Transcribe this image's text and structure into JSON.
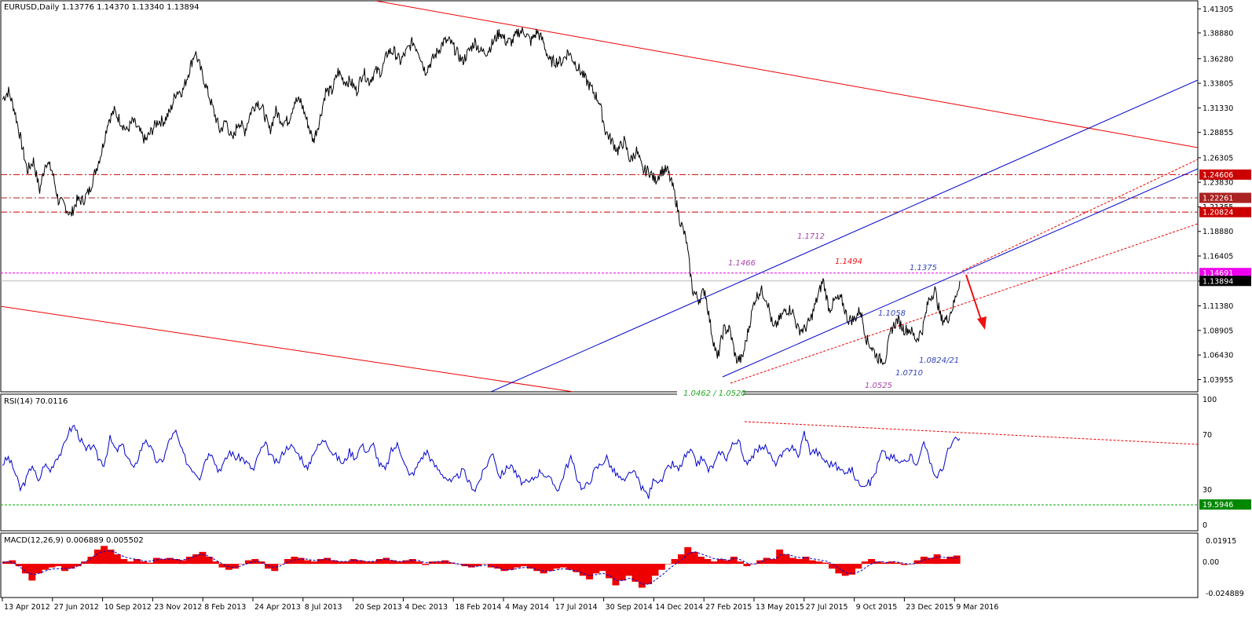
{
  "chart_data": [
    {
      "panel": "price",
      "type": "line",
      "header": "EURUSD,Daily  1.13776 1.14370 1.13340 1.13894",
      "ylim": [
        1.0296,
        1.418
      ],
      "price_levels": [
        "1.41305",
        "1.38880",
        "1.36280",
        "1.33805",
        "1.31330",
        "1.28855",
        "1.26305",
        "1.23830",
        "1.21355",
        "1.18880",
        "1.16405",
        "1.13880",
        "1.11380",
        "1.08905",
        "1.06430",
        "1.03955"
      ],
      "series": [
        {
          "values": [
            1.322,
            1.33,
            1.31,
            1.28,
            1.25,
            1.26,
            1.23,
            1.26,
            1.25,
            1.22,
            1.215,
            1.205,
            1.22,
            1.22,
            1.23,
            1.25,
            1.27,
            1.3,
            1.31,
            1.3,
            1.29,
            1.3,
            1.29,
            1.28,
            1.29,
            1.3,
            1.3,
            1.31,
            1.33,
            1.33,
            1.35,
            1.37,
            1.35,
            1.33,
            1.31,
            1.29,
            1.3,
            1.28,
            1.3,
            1.29,
            1.31,
            1.32,
            1.31,
            1.29,
            1.31,
            1.3,
            1.3,
            1.32,
            1.32,
            1.3,
            1.28,
            1.3,
            1.33,
            1.33,
            1.35,
            1.34,
            1.34,
            1.33,
            1.35,
            1.34,
            1.35,
            1.35,
            1.37,
            1.37,
            1.36,
            1.37,
            1.38,
            1.37,
            1.35,
            1.36,
            1.37,
            1.38,
            1.38,
            1.37,
            1.36,
            1.37,
            1.38,
            1.37,
            1.37,
            1.38,
            1.39,
            1.38,
            1.38,
            1.39,
            1.39,
            1.38,
            1.39,
            1.38,
            1.36,
            1.36,
            1.36,
            1.37,
            1.36,
            1.35,
            1.34,
            1.33,
            1.32,
            1.29,
            1.28,
            1.27,
            1.28,
            1.26,
            1.27,
            1.25,
            1.25,
            1.24,
            1.25,
            1.25,
            1.23,
            1.2,
            1.18,
            1.13,
            1.12,
            1.13,
            1.09,
            1.06,
            1.09,
            1.09,
            1.06,
            1.06,
            1.09,
            1.12,
            1.13,
            1.12,
            1.09,
            1.1,
            1.11,
            1.11,
            1.09,
            1.09,
            1.1,
            1.12,
            1.14,
            1.11,
            1.12,
            1.12,
            1.1,
            1.1,
            1.11,
            1.08,
            1.07,
            1.06,
            1.06,
            1.09,
            1.1,
            1.09,
            1.09,
            1.08,
            1.09,
            1.12,
            1.13,
            1.1,
            1.1,
            1.115,
            1.139
          ],
          "x_start": "6 Apr 2012",
          "x_end": "22 Mar 2016"
        }
      ],
      "levels": [
        {
          "value": 1.24606,
          "label": "1.24606",
          "kind": "resistance",
          "color": "#cc0000"
        },
        {
          "value": 1.22261,
          "label": "1.22261",
          "kind": "resistance",
          "color": "#aa2222"
        },
        {
          "value": 1.20824,
          "label": "1.20824",
          "kind": "resistance",
          "color": "#cc0000"
        },
        {
          "value": 1.14691,
          "label": "1.14691",
          "kind": "level",
          "color": "#ee00ee"
        },
        {
          "value": 1.13894,
          "label": "1.13894",
          "kind": "current",
          "color": "#000000"
        }
      ],
      "annotations": [
        {
          "text": "1.1712",
          "color": "#aa44aa"
        },
        {
          "text": "1.1466",
          "color": "#aa44aa"
        },
        {
          "text": "1.1494",
          "color": "#ee1111"
        },
        {
          "text": "1.1375",
          "color": "#3344bb"
        },
        {
          "text": "1.1058",
          "color": "#3344bb"
        },
        {
          "text": "1.0824/21",
          "color": "#3344bb"
        },
        {
          "text": "1.0710",
          "color": "#3344bb"
        },
        {
          "text": "1.0525",
          "color": "#aa44aa"
        },
        {
          "text": "1.0462 / 1.0520",
          "color": "#22aa22"
        }
      ],
      "colors": {
        "price": "#000000",
        "channel_red": "#ee0000",
        "channel_blue": "#0000cc",
        "arrow": "#ee1111"
      }
    },
    {
      "panel": "rsi",
      "type": "line",
      "header": "RSI(14) 70.0116",
      "ylim": [
        0,
        100
      ],
      "levels": [
        "100",
        "70",
        "30",
        "0"
      ],
      "support_label": "19.5946",
      "series": [
        {
          "values": [
            50,
            55,
            45,
            30,
            38,
            50,
            35,
            50,
            45,
            55,
            60,
            75,
            80,
            70,
            60,
            65,
            55,
            50,
            70,
            60,
            65,
            55,
            45,
            60,
            70,
            60,
            50,
            55,
            70,
            75,
            60,
            50,
            45,
            40,
            55,
            60,
            45,
            50,
            60,
            55,
            55,
            50,
            45,
            60,
            65,
            55,
            50,
            60,
            65,
            60,
            55,
            45,
            60,
            65,
            70,
            60,
            55,
            50,
            60,
            55,
            65,
            60,
            65,
            50,
            45,
            60,
            65,
            55,
            40,
            45,
            55,
            60,
            50,
            45,
            40,
            35,
            40,
            45,
            35,
            30,
            40,
            50,
            60,
            40,
            45,
            50,
            40,
            35,
            35,
            40,
            45,
            40,
            35,
            30,
            45,
            55,
            40,
            30,
            35,
            45,
            50,
            55,
            45,
            40,
            35,
            45,
            40,
            30,
            25,
            40,
            35,
            45,
            50,
            45,
            55,
            60,
            50,
            55,
            45,
            50,
            60,
            55,
            65,
            70,
            50,
            55,
            60,
            65,
            60,
            50,
            55,
            60,
            65,
            55,
            75,
            60,
            60,
            55,
            50,
            50,
            45,
            45,
            45,
            35,
            35,
            35,
            45,
            60,
            55,
            55,
            50,
            55,
            55,
            50,
            70,
            50,
            40,
            45,
            60,
            68,
            70
          ],
          "color": "#0000cc"
        }
      ]
    },
    {
      "panel": "macd",
      "type": "bar",
      "header": "MACD(12,26,9) 0.006889 0.005502",
      "ylim": [
        -0.02489,
        0.01915
      ],
      "levels": [
        "0.01915",
        "0.00",
        "-0.024889"
      ],
      "series": [
        {
          "values": [
            0.002,
            0.003,
            -0.002,
            -0.008,
            -0.014,
            -0.008,
            -0.005,
            -0.003,
            -0.002,
            -0.006,
            -0.004,
            -0.002,
            0.002,
            0.006,
            0.012,
            0.015,
            0.012,
            0.008,
            0.004,
            0.002,
            0.004,
            0.002,
            0.001,
            0.005,
            0.004,
            0.005,
            0.004,
            0.003,
            0.006,
            0.008,
            0.01,
            0.006,
            0.002,
            -0.003,
            -0.005,
            -0.004,
            0,
            0.003,
            0.004,
            0.002,
            -0.004,
            -0.006,
            0,
            0.004,
            0.006,
            0.005,
            0.003,
            0.002,
            0.004,
            0.005,
            0.003,
            0.002,
            0.002,
            0.004,
            0.003,
            0.002,
            0.002,
            0.004,
            0.005,
            0.003,
            0.002,
            0.003,
            0.004,
            0.002,
            -0.001,
            0.002,
            0.002,
            0.003,
            0.001,
            0,
            -0.002,
            -0.003,
            -0.002,
            0,
            -0.003,
            -0.004,
            -0.006,
            -0.005,
            -0.003,
            -0.002,
            -0.004,
            -0.006,
            -0.008,
            -0.006,
            -0.004,
            -0.003,
            -0.005,
            -0.007,
            -0.01,
            -0.013,
            -0.008,
            -0.006,
            -0.012,
            -0.018,
            -0.014,
            -0.01,
            -0.015,
            -0.02,
            -0.017,
            -0.01,
            -0.005,
            0,
            0.004,
            0.008,
            0.014,
            0.01,
            0.006,
            0.004,
            0.002,
            0.004,
            0.003,
            0.006,
            0.002,
            -0.002,
            0,
            0.003,
            0.005,
            0.004,
            0.012,
            0.008,
            0.005,
            0.004,
            0.006,
            0.003,
            0.002,
            0.001,
            -0.004,
            -0.008,
            -0.01,
            -0.009,
            -0.004,
            0.002,
            0.004,
            0.002,
            0.001,
            0.002,
            0.001,
            -0.001,
            0,
            0.003,
            0.006,
            0.005,
            0.008,
            0.004,
            0.006,
            0.007
          ],
          "color": "#ee0000"
        },
        {
          "name": "signal",
          "values": [
            0.001,
            0.002,
            0,
            -0.004,
            -0.008,
            -0.009,
            -0.007,
            -0.005,
            -0.004,
            -0.004,
            -0.004,
            -0.003,
            0,
            0.003,
            0.007,
            0.01,
            0.011,
            0.01,
            0.007,
            0.005,
            0.004,
            0.003,
            0.002,
            0.003,
            0.004,
            0.004,
            0.004,
            0.003,
            0.004,
            0.006,
            0.008,
            0.007,
            0.004,
            0.001,
            -0.002,
            -0.003,
            -0.002,
            0,
            0.002,
            0.002,
            -0.001,
            -0.003,
            -0.002,
            0.001,
            0.003,
            0.004,
            0.004,
            0.003,
            0.003,
            0.004,
            0.003,
            0.002,
            0.002,
            0.003,
            0.003,
            0.002,
            0.002,
            0.003,
            0.004,
            0.003,
            0.002,
            0.002,
            0.003,
            0.003,
            0.001,
            0.001,
            0.002,
            0.002,
            0.001,
            0,
            -0.001,
            -0.002,
            -0.002,
            -0.001,
            -0.002,
            -0.003,
            -0.005,
            -0.005,
            -0.004,
            -0.003,
            -0.003,
            -0.005,
            -0.006,
            -0.006,
            -0.005,
            -0.004,
            -0.005,
            -0.006,
            -0.008,
            -0.01,
            -0.009,
            -0.008,
            -0.01,
            -0.014,
            -0.014,
            -0.012,
            -0.014,
            -0.017,
            -0.017,
            -0.013,
            -0.009,
            -0.004,
            0,
            0.004,
            0.009,
            0.01,
            0.008,
            0.006,
            0.004,
            0.004,
            0.003,
            0.005,
            0.003,
            0,
            0,
            0.002,
            0.004,
            0.004,
            0.008,
            0.008,
            0.006,
            0.005,
            0.005,
            0.004,
            0.003,
            0.002,
            -0.001,
            -0.005,
            -0.008,
            -0.008,
            -0.006,
            -0.002,
            0.001,
            0.002,
            0.001,
            0.002,
            0.001,
            0,
            0,
            0.002,
            0.004,
            0.005,
            0.006,
            0.005,
            0.005,
            0.0055
          ],
          "color": "#0000cc"
        }
      ]
    }
  ],
  "x_axis": {
    "tick_labels": [
      "13 Apr 2012",
      "27 Jun 2012",
      "10 Sep 2012",
      "23 Nov 2012",
      "8 Feb 2013",
      "24 Apr 2013",
      "8 Jul 2013",
      "20 Sep 2013",
      "4 Dec 2013",
      "18 Feb 2014",
      "4 May 2014",
      "17 Jul 2014",
      "30 Sep 2014",
      "14 Dec 2014",
      "27 Feb 2015",
      "13 May 2015",
      "27 Jul 2015",
      "9 Oct 2015",
      "23 Dec 2015",
      "9 Mar 2016"
    ]
  }
}
